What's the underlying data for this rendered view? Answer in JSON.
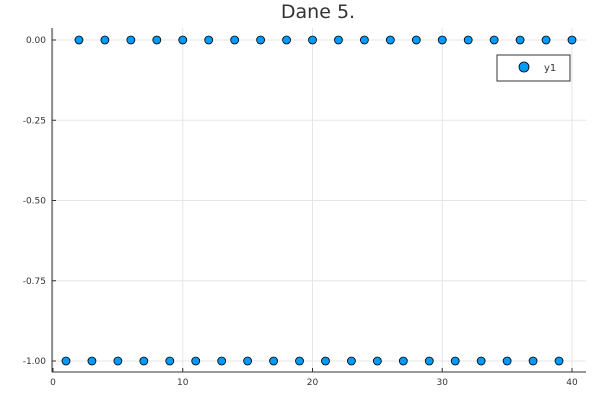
{
  "chart_data": {
    "type": "scatter",
    "title": "Dane 5.",
    "xlabel": "",
    "ylabel": "",
    "xlim": [
      0,
      40
    ],
    "ylim": [
      -1.0,
      0.0
    ],
    "x_ticks": [
      0,
      10,
      20,
      30,
      40
    ],
    "x_tick_labels": [
      "0",
      "10",
      "20",
      "30",
      "40"
    ],
    "y_ticks": [
      0.0,
      -0.25,
      -0.5,
      -0.75,
      -1.0
    ],
    "y_tick_labels": [
      "0.00",
      "-0.25",
      "-0.50",
      "-0.75",
      "-1.00"
    ],
    "grid": true,
    "legend_position": "top-right",
    "series": [
      {
        "name": "y1",
        "color": "#009af9",
        "x": [
          1,
          2,
          3,
          4,
          5,
          6,
          7,
          8,
          9,
          10,
          11,
          12,
          13,
          14,
          15,
          16,
          17,
          18,
          19,
          20,
          21,
          22,
          23,
          24,
          25,
          26,
          27,
          28,
          29,
          30,
          31,
          32,
          33,
          34,
          35,
          36,
          37,
          38,
          39,
          40
        ],
        "y": [
          -1,
          0,
          -1,
          0,
          -1,
          0,
          -1,
          0,
          -1,
          0,
          -1,
          0,
          -1,
          0,
          -1,
          0,
          -1,
          0,
          -1,
          0,
          -1,
          0,
          -1,
          0,
          -1,
          0,
          -1,
          0,
          -1,
          0,
          -1,
          0,
          -1,
          0,
          -1,
          0,
          -1,
          0,
          -1,
          0
        ]
      }
    ]
  }
}
